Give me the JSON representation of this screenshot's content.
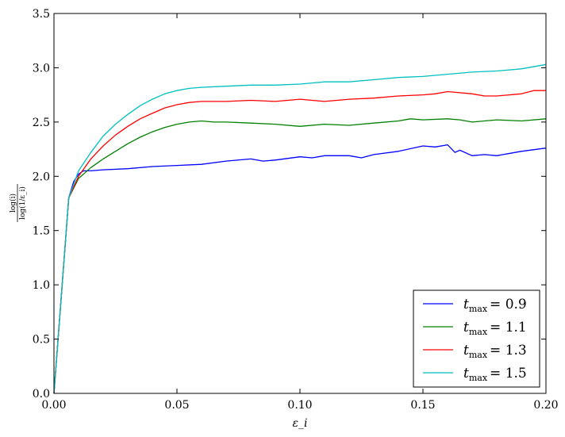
{
  "chart_data": {
    "type": "line",
    "title": "",
    "xlabel": "ε_i",
    "ylabel": {
      "numerator": "log(i)",
      "denominator": "log(1/ε_i)"
    },
    "xlim": [
      0.0,
      0.2
    ],
    "ylim": [
      0.0,
      3.5
    ],
    "xticks": [
      0.0,
      0.05,
      0.1,
      0.15,
      0.2
    ],
    "xtick_labels": [
      "0.00",
      "0.05",
      "0.10",
      "0.15",
      "0.20"
    ],
    "yticks": [
      0.0,
      0.5,
      1.0,
      1.5,
      2.0,
      2.5,
      3.0,
      3.5
    ],
    "ytick_labels": [
      "0.0",
      "0.5",
      "1.0",
      "1.5",
      "2.0",
      "2.5",
      "3.0",
      "3.5"
    ],
    "grid": false,
    "legend_position": "bottom-right",
    "series": [
      {
        "name": "t_max = 0.9",
        "legend_prefix": "t",
        "legend_sub": "max",
        "legend_value": "= 0.9",
        "color": "#0000ff",
        "x": [
          0.0,
          0.006,
          0.008,
          0.01,
          0.012,
          0.015,
          0.02,
          0.03,
          0.04,
          0.05,
          0.06,
          0.07,
          0.08,
          0.085,
          0.09,
          0.1,
          0.105,
          0.11,
          0.12,
          0.125,
          0.13,
          0.14,
          0.15,
          0.155,
          0.16,
          0.163,
          0.165,
          0.17,
          0.175,
          0.18,
          0.19,
          0.2
        ],
        "y": [
          0.0,
          1.8,
          1.95,
          2.02,
          2.05,
          2.05,
          2.06,
          2.07,
          2.09,
          2.1,
          2.11,
          2.14,
          2.16,
          2.14,
          2.15,
          2.18,
          2.17,
          2.19,
          2.19,
          2.17,
          2.2,
          2.23,
          2.28,
          2.27,
          2.29,
          2.22,
          2.24,
          2.19,
          2.2,
          2.19,
          2.23,
          2.26
        ]
      },
      {
        "name": "t_max = 1.1",
        "legend_prefix": "t",
        "legend_sub": "max",
        "legend_value": "= 1.1",
        "color": "#008000",
        "x": [
          0.0,
          0.006,
          0.01,
          0.015,
          0.02,
          0.025,
          0.03,
          0.035,
          0.04,
          0.045,
          0.05,
          0.055,
          0.06,
          0.065,
          0.07,
          0.08,
          0.09,
          0.1,
          0.11,
          0.12,
          0.13,
          0.14,
          0.145,
          0.15,
          0.16,
          0.165,
          0.17,
          0.18,
          0.19,
          0.2
        ],
        "y": [
          0.0,
          1.8,
          1.98,
          2.08,
          2.16,
          2.23,
          2.3,
          2.36,
          2.41,
          2.45,
          2.48,
          2.5,
          2.51,
          2.5,
          2.5,
          2.49,
          2.48,
          2.46,
          2.48,
          2.47,
          2.49,
          2.51,
          2.53,
          2.52,
          2.53,
          2.52,
          2.5,
          2.52,
          2.51,
          2.53
        ]
      },
      {
        "name": "t_max = 1.3",
        "legend_prefix": "t",
        "legend_sub": "max",
        "legend_value": "= 1.3",
        "color": "#ff0000",
        "x": [
          0.0,
          0.006,
          0.01,
          0.015,
          0.02,
          0.025,
          0.03,
          0.035,
          0.04,
          0.045,
          0.05,
          0.055,
          0.06,
          0.07,
          0.08,
          0.09,
          0.1,
          0.11,
          0.12,
          0.13,
          0.14,
          0.15,
          0.155,
          0.16,
          0.17,
          0.175,
          0.18,
          0.19,
          0.195,
          0.2
        ],
        "y": [
          0.0,
          1.8,
          2.0,
          2.16,
          2.28,
          2.38,
          2.46,
          2.53,
          2.58,
          2.63,
          2.66,
          2.68,
          2.69,
          2.69,
          2.7,
          2.69,
          2.71,
          2.69,
          2.71,
          2.72,
          2.74,
          2.75,
          2.76,
          2.78,
          2.76,
          2.74,
          2.74,
          2.76,
          2.79,
          2.79
        ]
      },
      {
        "name": "t_max = 1.5",
        "legend_prefix": "t",
        "legend_sub": "max",
        "legend_value": "= 1.5",
        "color": "#00bfbf",
        "x": [
          0.0,
          0.006,
          0.01,
          0.015,
          0.02,
          0.025,
          0.03,
          0.035,
          0.04,
          0.045,
          0.05,
          0.055,
          0.06,
          0.07,
          0.08,
          0.09,
          0.1,
          0.105,
          0.11,
          0.12,
          0.13,
          0.14,
          0.15,
          0.16,
          0.17,
          0.18,
          0.19,
          0.2
        ],
        "y": [
          0.0,
          1.8,
          2.05,
          2.22,
          2.37,
          2.48,
          2.57,
          2.65,
          2.71,
          2.76,
          2.79,
          2.81,
          2.82,
          2.83,
          2.84,
          2.84,
          2.85,
          2.86,
          2.87,
          2.87,
          2.89,
          2.91,
          2.92,
          2.94,
          2.96,
          2.97,
          2.99,
          3.03
        ]
      }
    ]
  }
}
